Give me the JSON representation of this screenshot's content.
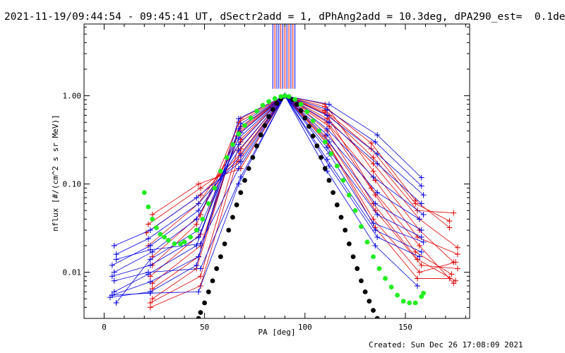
{
  "title": "2021-11-19/09:44:54 - 09:45:41 UT, dSectr2add = 1, dPhAng2add = 10.3deg, dPA290_est=  0.1deg",
  "footer": "Created: Sun Dec 26 17:08:09 2021",
  "colors": {
    "red": "#e00000",
    "blue": "#0000e0",
    "green": "#22ee22",
    "black": "#000000"
  },
  "chart_data": {
    "type": "line",
    "xlabel": "PA [deg]",
    "ylabel": "nflux [#/(cm^2 s sr MeV)]",
    "xlim": [
      -10,
      182
    ],
    "ylim": [
      0.003,
      6.5
    ],
    "yscale": "log",
    "x_ticks": [
      {
        "v": 0,
        "label": "0"
      },
      {
        "v": 50,
        "label": "50"
      },
      {
        "v": 100,
        "label": "100"
      },
      {
        "v": 150,
        "label": "150"
      }
    ],
    "y_ticks": [
      {
        "v": 0.01,
        "label": "0.01"
      },
      {
        "v": 0.1,
        "label": "0.10"
      },
      {
        "v": 1,
        "label": "1.00"
      }
    ],
    "vertical_markers": {
      "x": [
        84,
        85,
        86,
        87,
        88,
        89,
        90,
        91,
        92,
        93,
        94,
        95
      ],
      "y_top": 6.5,
      "y_bottom": 1.2,
      "colors": [
        "blue",
        "red",
        "blue",
        "blue",
        "red",
        "blue",
        "red",
        "blue",
        "red",
        "blue",
        "red",
        "blue"
      ]
    },
    "red_series": [
      {
        "x": [
          23,
          48,
          68,
          90,
          110,
          133,
          155,
          172
        ],
        "y": [
          0.004,
          0.007,
          0.25,
          1.0,
          0.75,
          0.29,
          0.065,
          0.032
        ]
      },
      {
        "x": [
          23,
          48,
          68,
          90,
          110,
          133,
          155,
          172
        ],
        "y": [
          0.0045,
          0.009,
          0.32,
          1.0,
          0.68,
          0.25,
          0.06,
          0.038
        ]
      },
      {
        "x": [
          24,
          46,
          66,
          90,
          112,
          134,
          156,
          174
        ],
        "y": [
          0.005,
          0.011,
          0.35,
          1.0,
          0.6,
          0.2,
          0.05,
          0.047
        ]
      },
      {
        "x": [
          24,
          47,
          67,
          90,
          111,
          134,
          157,
          176
        ],
        "y": [
          0.0065,
          0.015,
          0.4,
          1.0,
          0.55,
          0.17,
          0.04,
          0.019
        ]
      },
      {
        "x": [
          24,
          48,
          68,
          90,
          110,
          134,
          157,
          174
        ],
        "y": [
          0.0075,
          0.02,
          0.45,
          1.0,
          0.8,
          0.14,
          0.03,
          0.013
        ]
      },
      {
        "x": [
          23,
          48,
          67,
          90,
          111,
          135,
          156,
          176
        ],
        "y": [
          0.009,
          0.027,
          0.5,
          1.0,
          0.5,
          0.11,
          0.025,
          0.016
        ]
      },
      {
        "x": [
          24,
          46,
          68,
          90,
          110,
          133,
          157,
          174
        ],
        "y": [
          0.012,
          0.035,
          0.55,
          1.0,
          0.65,
          0.09,
          0.02,
          0.0075
        ]
      },
      {
        "x": [
          24,
          48,
          67,
          90,
          112,
          135,
          155,
          173
        ],
        "y": [
          0.015,
          0.045,
          0.38,
          1.0,
          0.45,
          0.075,
          0.017,
          0.0095
        ]
      },
      {
        "x": [
          22,
          47,
          68,
          90,
          111,
          134,
          156,
          175
        ],
        "y": [
          0.02,
          0.06,
          0.3,
          1.0,
          0.4,
          0.06,
          0.014,
          0.008
        ]
      },
      {
        "x": [
          21,
          48,
          68,
          90,
          110,
          135,
          158,
          176
        ],
        "y": [
          0.028,
          0.075,
          0.22,
          1.0,
          0.35,
          0.05,
          0.012,
          0.011
        ]
      },
      {
        "x": [
          22,
          48,
          67,
          90,
          111,
          134,
          157,
          175
        ],
        "y": [
          0.035,
          0.09,
          0.18,
          1.0,
          0.3,
          0.04,
          0.01,
          0.013
        ]
      },
      {
        "x": [
          24,
          47,
          68,
          90,
          112,
          135,
          156,
          172
        ],
        "y": [
          0.045,
          0.1,
          0.15,
          1.0,
          0.27,
          0.032,
          0.0085,
          0.0085
        ]
      }
    ],
    "blue_series": [
      {
        "x": [
          3,
          23,
          46,
          67,
          90,
          112,
          136,
          158
        ],
        "y": [
          0.0052,
          0.006,
          0.012,
          0.55,
          1.0,
          0.8,
          0.36,
          0.118
        ]
      },
      {
        "x": [
          4,
          23,
          47,
          68,
          90,
          111,
          135,
          158
        ],
        "y": [
          0.0055,
          0.0078,
          0.015,
          0.48,
          1.0,
          0.7,
          0.3,
          0.095
        ]
      },
      {
        "x": [
          5,
          22,
          46,
          67,
          90,
          111,
          136,
          159
        ],
        "y": [
          0.006,
          0.0095,
          0.02,
          0.42,
          1.0,
          0.6,
          0.22,
          0.075
        ]
      },
      {
        "x": [
          4,
          23,
          47,
          68,
          90,
          112,
          136,
          158
        ],
        "y": [
          0.009,
          0.012,
          0.025,
          0.38,
          1.0,
          0.5,
          0.17,
          0.06
        ]
      },
      {
        "x": [
          6,
          23,
          47,
          67,
          90,
          111,
          134,
          159
        ],
        "y": [
          0.0045,
          0.014,
          0.03,
          0.33,
          1.0,
          0.42,
          0.12,
          0.045
        ]
      },
      {
        "x": [
          5,
          24,
          46,
          67,
          90,
          111,
          136,
          157
        ],
        "y": [
          0.01,
          0.017,
          0.04,
          0.28,
          1.0,
          0.36,
          0.08,
          0.04
        ]
      },
      {
        "x": [
          4,
          23,
          47,
          67,
          90,
          112,
          135,
          158
        ],
        "y": [
          0.012,
          0.02,
          0.05,
          0.24,
          1.0,
          0.3,
          0.06,
          0.03
        ]
      },
      {
        "x": [
          6,
          22,
          47,
          68,
          90,
          111,
          136,
          158
        ],
        "y": [
          0.016,
          0.024,
          0.06,
          0.21,
          1.0,
          0.26,
          0.045,
          0.025
        ]
      },
      {
        "x": [
          5,
          23,
          46,
          68,
          90,
          112,
          134,
          159
        ],
        "y": [
          0.02,
          0.03,
          0.07,
          0.18,
          1.0,
          0.22,
          0.036,
          0.022
        ]
      },
      {
        "x": [
          6,
          23,
          48,
          67,
          90,
          111,
          135,
          158
        ],
        "y": [
          0.014,
          0.018,
          0.021,
          0.15,
          1.0,
          0.19,
          0.03,
          0.017
        ]
      },
      {
        "x": [
          5,
          22,
          48,
          68,
          90,
          112,
          136,
          157
        ],
        "y": [
          0.008,
          0.01,
          0.011,
          0.12,
          1.0,
          0.16,
          0.025,
          0.015
        ]
      },
      {
        "x": [
          4,
          23,
          47,
          67,
          90,
          111,
          135,
          156
        ],
        "y": [
          0.0055,
          0.0058,
          0.006,
          0.1,
          1.0,
          0.14,
          0.02,
          0.007
        ]
      }
    ],
    "green_curve": {
      "x": [
        20,
        22,
        24,
        26,
        28,
        30,
        32,
        35,
        38,
        40,
        43,
        46,
        49,
        52,
        55,
        58,
        61,
        64,
        67,
        70,
        73,
        76,
        79,
        82,
        85,
        88,
        90,
        92,
        95,
        98,
        101,
        104,
        107,
        110,
        113,
        116,
        119,
        122,
        125,
        128,
        131,
        134,
        137,
        140,
        143,
        146,
        149,
        152,
        155,
        158,
        159
      ],
      "y": [
        0.08,
        0.055,
        0.04,
        0.032,
        0.027,
        0.025,
        0.023,
        0.021,
        0.021,
        0.022,
        0.025,
        0.03,
        0.04,
        0.06,
        0.09,
        0.14,
        0.2,
        0.28,
        0.37,
        0.46,
        0.56,
        0.67,
        0.78,
        0.86,
        0.93,
        0.98,
        1.0,
        0.98,
        0.91,
        0.8,
        0.66,
        0.52,
        0.4,
        0.3,
        0.22,
        0.16,
        0.11,
        0.075,
        0.05,
        0.033,
        0.022,
        0.015,
        0.011,
        0.0085,
        0.0068,
        0.0055,
        0.0047,
        0.0045,
        0.0045,
        0.0053,
        0.0058
      ]
    },
    "black_curve": {
      "x": [
        47,
        48,
        50,
        52,
        54,
        56,
        58,
        60,
        62,
        64,
        66,
        68,
        70,
        72,
        74,
        76,
        78,
        80,
        82,
        84,
        86,
        88,
        90,
        92,
        94,
        96,
        98,
        100,
        102,
        104,
        106,
        108,
        110,
        112,
        114,
        116,
        118,
        120,
        122,
        124,
        126,
        128,
        130,
        132,
        134,
        136
      ],
      "y": [
        0.003,
        0.0035,
        0.0045,
        0.006,
        0.008,
        0.011,
        0.015,
        0.021,
        0.03,
        0.042,
        0.058,
        0.08,
        0.11,
        0.15,
        0.2,
        0.27,
        0.36,
        0.46,
        0.58,
        0.7,
        0.82,
        0.92,
        1.0,
        0.97,
        0.9,
        0.8,
        0.68,
        0.56,
        0.45,
        0.35,
        0.27,
        0.2,
        0.15,
        0.11,
        0.08,
        0.058,
        0.042,
        0.03,
        0.021,
        0.015,
        0.011,
        0.008,
        0.006,
        0.0047,
        0.0037,
        0.003
      ]
    }
  }
}
